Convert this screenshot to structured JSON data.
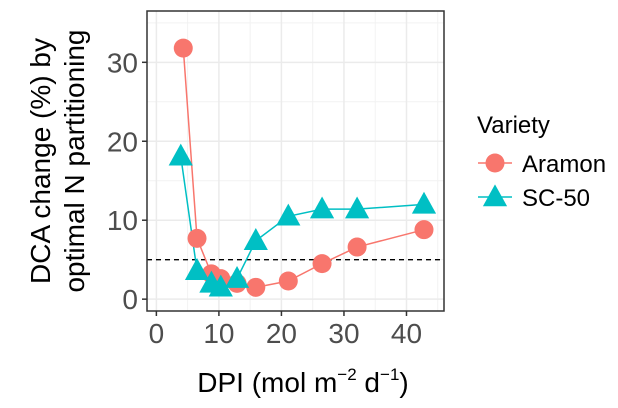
{
  "chart_data": {
    "type": "line",
    "title": "",
    "xlabel": "DPI (mol m",
    "xlabel_sup1": "−2",
    "xlabel_mid": " d",
    "xlabel_sup2": "−1",
    "xlabel_end": ")",
    "ylabel_line1": "DCA change (%) by",
    "ylabel_line2": "optimal N partitioning",
    "xlim": [
      -1.5,
      46
    ],
    "ylim": [
      -1.5,
      36.5
    ],
    "xticks": [
      0,
      10,
      20,
      30,
      40
    ],
    "yticks": [
      0,
      10,
      20,
      30
    ],
    "xtick_labels": [
      "0",
      "10",
      "20",
      "30",
      "40"
    ],
    "ytick_labels": [
      "0",
      "10",
      "20",
      "30"
    ],
    "grid": true,
    "reference_line": {
      "y": 5,
      "style": "dashed",
      "color": "#000000"
    },
    "legend": {
      "title": "Variety",
      "placement": "right"
    },
    "series": [
      {
        "name": "Aramon",
        "marker": "circle",
        "color": "#F8766D",
        "x": [
          4.3,
          6.5,
          8.8,
          10.3,
          12.9,
          15.9,
          21.1,
          26.5,
          32.1,
          42.8
        ],
        "y": [
          31.8,
          7.7,
          3.2,
          2.6,
          2.0,
          1.5,
          2.3,
          4.5,
          6.6,
          8.8
        ]
      },
      {
        "name": "SC-50",
        "marker": "triangle",
        "color": "#00BFC4",
        "x": [
          3.9,
          6.5,
          8.8,
          10.3,
          12.9,
          15.9,
          21.1,
          26.5,
          32.1,
          42.8
        ],
        "y": [
          18.1,
          3.6,
          2.0,
          1.5,
          2.6,
          7.4,
          10.5,
          11.4,
          11.4,
          12.0
        ]
      }
    ]
  }
}
